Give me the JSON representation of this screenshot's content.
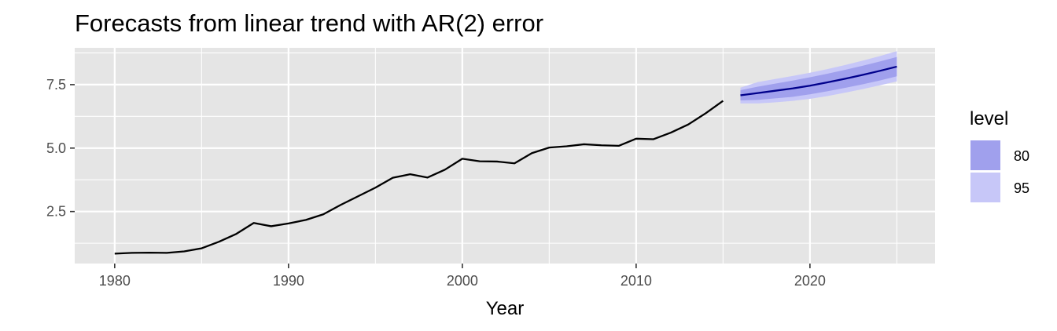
{
  "chart_data": {
    "type": "line",
    "title": "Forecasts from linear trend with AR(2) error",
    "xlabel": "Year",
    "ylabel": "",
    "xlim": [
      1977.7,
      2027.2
    ],
    "ylim": [
      0.45,
      8.95
    ],
    "x_ticks": [
      1980,
      1990,
      2000,
      2010,
      2020
    ],
    "x_tick_labels": [
      "1980",
      "1990",
      "2000",
      "2010",
      "2020"
    ],
    "y_ticks": [
      2.5,
      5.0,
      7.5
    ],
    "y_tick_labels": [
      "2.5",
      "5.0",
      "7.5"
    ],
    "grid": true,
    "legend_position": "right",
    "legend": {
      "title": "level",
      "entries": [
        {
          "label": "80",
          "color": "#a0a0ed"
        },
        {
          "label": "95",
          "color": "#c7c7f8"
        }
      ]
    },
    "colors": {
      "panel_background": "#e5e5e5",
      "grid_major": "#ffffff",
      "history_line": "#000000",
      "forecast_line": "#00008b",
      "band_80": "#a0a0ed",
      "band_95": "#c7c7f8"
    },
    "series": [
      {
        "role": "history",
        "x": [
          1980,
          1981,
          1982,
          1983,
          1984,
          1985,
          1986,
          1987,
          1988,
          1989,
          1990,
          1991,
          1992,
          1993,
          1994,
          1995,
          1996,
          1997,
          1998,
          1999,
          2000,
          2001,
          2002,
          2003,
          2004,
          2005,
          2006,
          2007,
          2008,
          2009,
          2010,
          2011,
          2012,
          2013,
          2014,
          2015
        ],
        "y": [
          0.84,
          0.87,
          0.88,
          0.87,
          0.93,
          1.05,
          1.31,
          1.62,
          2.05,
          1.92,
          2.03,
          2.17,
          2.39,
          2.76,
          3.1,
          3.44,
          3.83,
          3.97,
          3.84,
          4.15,
          4.58,
          4.48,
          4.47,
          4.4,
          4.8,
          5.02,
          5.07,
          5.15,
          5.11,
          5.09,
          5.37,
          5.35,
          5.61,
          5.93,
          6.37,
          6.86
        ]
      },
      {
        "role": "forecast",
        "x": [
          2016,
          2017,
          2018,
          2019,
          2020,
          2021,
          2022,
          2023,
          2024,
          2025
        ],
        "y": [
          7.08,
          7.17,
          7.26,
          7.35,
          7.46,
          7.59,
          7.73,
          7.88,
          8.04,
          8.21
        ]
      }
    ],
    "intervals": {
      "x": [
        2016,
        2017,
        2018,
        2019,
        2020,
        2021,
        2022,
        2023,
        2024,
        2025
      ],
      "lo80": [
        6.88,
        6.9,
        6.96,
        7.02,
        7.12,
        7.24,
        7.37,
        7.51,
        7.66,
        7.83
      ],
      "hi80": [
        7.28,
        7.42,
        7.54,
        7.66,
        7.79,
        7.93,
        8.08,
        8.24,
        8.41,
        8.59
      ],
      "lo95": [
        6.76,
        6.76,
        6.8,
        6.86,
        6.94,
        7.05,
        7.18,
        7.32,
        7.47,
        7.63
      ],
      "hi95": [
        7.38,
        7.6,
        7.72,
        7.84,
        7.97,
        8.11,
        8.27,
        8.44,
        8.62,
        8.82
      ]
    }
  }
}
